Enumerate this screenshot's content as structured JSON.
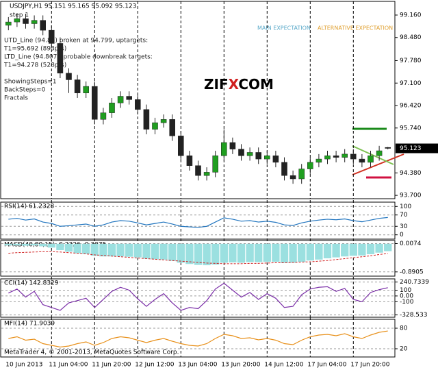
{
  "overlay_text": [
    "step 1",
    "UTD_Line (94.85) broken at 94.799, uptargets:",
    "T1=95.692 (893pts)",
    "LTD_Line (94.807), probable downbreak targets:",
    "T1=94.278 (528pts)",
    "ShowingSteps=1",
    "BackSteps=0",
    "Fractals"
  ],
  "expectation": {
    "main": "MAIN EXPECTATION",
    "alternative": "ALTERNATIVE EXPECTATION"
  },
  "logo": {
    "left": "ZIF",
    "x": "X",
    "right": "COM"
  },
  "footer": "MetaTrader 4, © 2001-2013, MetaQuotes Software Corp.",
  "chart_data": [
    {
      "type": "candlestick",
      "title": "USDJPY,H1  95.151 95.165 95.092 95.123",
      "up_color": "#1f9e1f",
      "down_color": "#222222",
      "categories": [
        "10 Jun 2013",
        null,
        null,
        null,
        null,
        "11 Jun 04:00",
        null,
        null,
        null,
        null,
        "11 Jun 20:00",
        null,
        null,
        null,
        null,
        "12 Jun 12:00",
        null,
        null,
        null,
        null,
        "13 Jun 04:00",
        null,
        null,
        null,
        null,
        "13 Jun 20:00",
        null,
        null,
        null,
        null,
        "14 Jun 12:00",
        null,
        null,
        null,
        null,
        "17 Jun 04:00",
        null,
        null,
        null,
        null,
        "17 Jun 20:00",
        null,
        null,
        null,
        null
      ],
      "open": [
        98.85,
        98.95,
        99.05,
        98.9,
        99.0,
        98.7,
        98.3,
        97.4,
        97.2,
        96.8,
        97.0,
        96.0,
        96.2,
        96.5,
        96.7,
        96.6,
        96.3,
        95.7,
        95.9,
        96.0,
        95.5,
        94.9,
        94.6,
        94.3,
        94.4,
        94.9,
        95.3,
        95.1,
        94.9,
        95.0,
        94.8,
        94.9,
        94.7,
        94.3,
        94.2,
        94.5,
        94.7,
        94.8,
        94.9,
        94.85,
        94.95,
        94.8,
        94.7,
        94.9,
        95.151
      ],
      "high": [
        99.1,
        99.2,
        99.2,
        99.15,
        99.15,
        98.85,
        98.45,
        97.55,
        97.35,
        97.15,
        97.15,
        96.35,
        96.65,
        96.85,
        96.85,
        96.75,
        96.45,
        96.05,
        96.15,
        96.15,
        95.65,
        95.05,
        94.75,
        94.55,
        95.05,
        95.7,
        95.45,
        95.25,
        95.15,
        95.15,
        95.05,
        95.05,
        94.85,
        94.45,
        94.65,
        94.85,
        94.95,
        95.05,
        95.05,
        95.1,
        95.1,
        94.95,
        95.05,
        95.2,
        95.165
      ],
      "low": [
        98.7,
        98.8,
        98.75,
        98.75,
        98.55,
        98.15,
        97.25,
        96.8,
        96.65,
        96.65,
        95.85,
        95.85,
        96.05,
        96.35,
        96.45,
        96.15,
        95.55,
        95.55,
        95.75,
        95.35,
        94.75,
        94.45,
        94.15,
        94.15,
        94.25,
        94.75,
        94.95,
        94.75,
        94.75,
        94.65,
        94.65,
        94.55,
        94.15,
        94.05,
        94.05,
        94.35,
        94.55,
        94.65,
        94.7,
        94.7,
        94.65,
        94.55,
        94.55,
        94.75,
        95.092
      ],
      "close": [
        98.95,
        99.05,
        98.9,
        99.0,
        98.7,
        98.3,
        97.4,
        97.2,
        96.8,
        97.0,
        96.0,
        96.2,
        96.5,
        96.7,
        96.6,
        96.3,
        95.7,
        95.9,
        96.0,
        95.5,
        94.9,
        94.6,
        94.3,
        94.4,
        94.9,
        95.3,
        95.1,
        94.9,
        95.0,
        94.8,
        94.9,
        94.7,
        94.3,
        94.2,
        94.5,
        94.7,
        94.8,
        94.9,
        94.85,
        94.95,
        94.8,
        94.7,
        94.9,
        95.05,
        95.123
      ],
      "ylim": [
        93.64,
        99.45
      ],
      "yticks": [
        {
          "value": 99.16,
          "label": "99.160"
        },
        {
          "value": 98.48,
          "label": "98.480"
        },
        {
          "value": 97.78,
          "label": "97.780"
        },
        {
          "value": 97.1,
          "label": "97.100"
        },
        {
          "value": 96.42,
          "label": "96.420"
        },
        {
          "value": 95.74,
          "label": "95.740"
        },
        {
          "value": 94.38,
          "label": "94.380"
        },
        {
          "value": 93.7,
          "label": "93.700"
        }
      ]
    },
    {
      "type": "line",
      "title": "RSI(14) 61.2328",
      "color": "#1e73be",
      "ylim": [
        -8,
        108
      ],
      "yticks": [
        100,
        70,
        30,
        0
      ],
      "values": [
        55,
        58,
        52,
        56,
        45,
        40,
        30,
        32,
        35,
        38,
        30,
        35,
        45,
        50,
        48,
        42,
        35,
        40,
        45,
        38,
        30,
        28,
        26,
        30,
        45,
        60,
        55,
        48,
        50,
        45,
        48,
        44,
        35,
        33,
        42,
        48,
        52,
        55,
        53,
        56,
        50,
        46,
        52,
        58,
        61.2328
      ]
    },
    {
      "type": "macd",
      "title": "MACD(40,80,15) -0.2326 -0.3075",
      "color": "#9be0e0",
      "signal_color": "#d02020",
      "ylim": [
        -0.96,
        0.04
      ],
      "yticks": [
        0.0074,
        -0.8905
      ],
      "values": [
        -0.05,
        -0.05,
        -0.06,
        -0.05,
        -0.08,
        -0.12,
        -0.2,
        -0.25,
        -0.3,
        -0.32,
        -0.38,
        -0.4,
        -0.4,
        -0.4,
        -0.41,
        -0.43,
        -0.47,
        -0.49,
        -0.5,
        -0.54,
        -0.6,
        -0.64,
        -0.67,
        -0.68,
        -0.66,
        -0.6,
        -0.59,
        -0.6,
        -0.58,
        -0.58,
        -0.57,
        -0.57,
        -0.6,
        -0.6,
        -0.57,
        -0.53,
        -0.5,
        -0.46,
        -0.43,
        -0.4,
        -0.38,
        -0.37,
        -0.33,
        -0.28,
        -0.2326
      ],
      "signal": [
        -0.3,
        -0.28,
        -0.27,
        -0.26,
        -0.25,
        -0.25,
        -0.26,
        -0.28,
        -0.3,
        -0.32,
        -0.35,
        -0.37,
        -0.39,
        -0.41,
        -0.43,
        -0.45,
        -0.47,
        -0.49,
        -0.51,
        -0.53,
        -0.55,
        -0.57,
        -0.59,
        -0.61,
        -0.62,
        -0.63,
        -0.63,
        -0.63,
        -0.62,
        -0.62,
        -0.61,
        -0.6,
        -0.6,
        -0.59,
        -0.58,
        -0.57,
        -0.55,
        -0.53,
        -0.5,
        -0.47,
        -0.44,
        -0.41,
        -0.38,
        -0.34,
        -0.3075
      ]
    },
    {
      "type": "line",
      "title": "CCI(14) 142.8329",
      "color": "#7b2fa8",
      "ylim": [
        -345,
        260
      ],
      "yticks": [
        240.7339,
        100,
        {
          "value": 0,
          "label": "0.00"
        },
        -100,
        -328.533
      ],
      "values": [
        50,
        120,
        -20,
        80,
        -150,
        -200,
        -250,
        -120,
        -80,
        -40,
        -200,
        -60,
        80,
        150,
        100,
        -50,
        -180,
        -60,
        40,
        -120,
        -250,
        -200,
        -220,
        -80,
        120,
        220,
        100,
        -20,
        60,
        -60,
        40,
        -40,
        -200,
        -180,
        20,
        120,
        150,
        160,
        80,
        130,
        -60,
        -100,
        60,
        110,
        142.8329
      ]
    },
    {
      "type": "line",
      "title": "MFI(14) 71.9039",
      "color": "#e8901a",
      "ylim": [
        0,
        100
      ],
      "yticks": [
        80,
        20
      ],
      "values": [
        50,
        55,
        45,
        48,
        35,
        30,
        25,
        28,
        35,
        40,
        30,
        38,
        50,
        55,
        52,
        45,
        38,
        45,
        50,
        42,
        35,
        30,
        28,
        35,
        50,
        62,
        58,
        50,
        52,
        46,
        50,
        45,
        35,
        32,
        45,
        55,
        60,
        62,
        58,
        64,
        55,
        50,
        60,
        68,
        71.9039
      ]
    }
  ]
}
